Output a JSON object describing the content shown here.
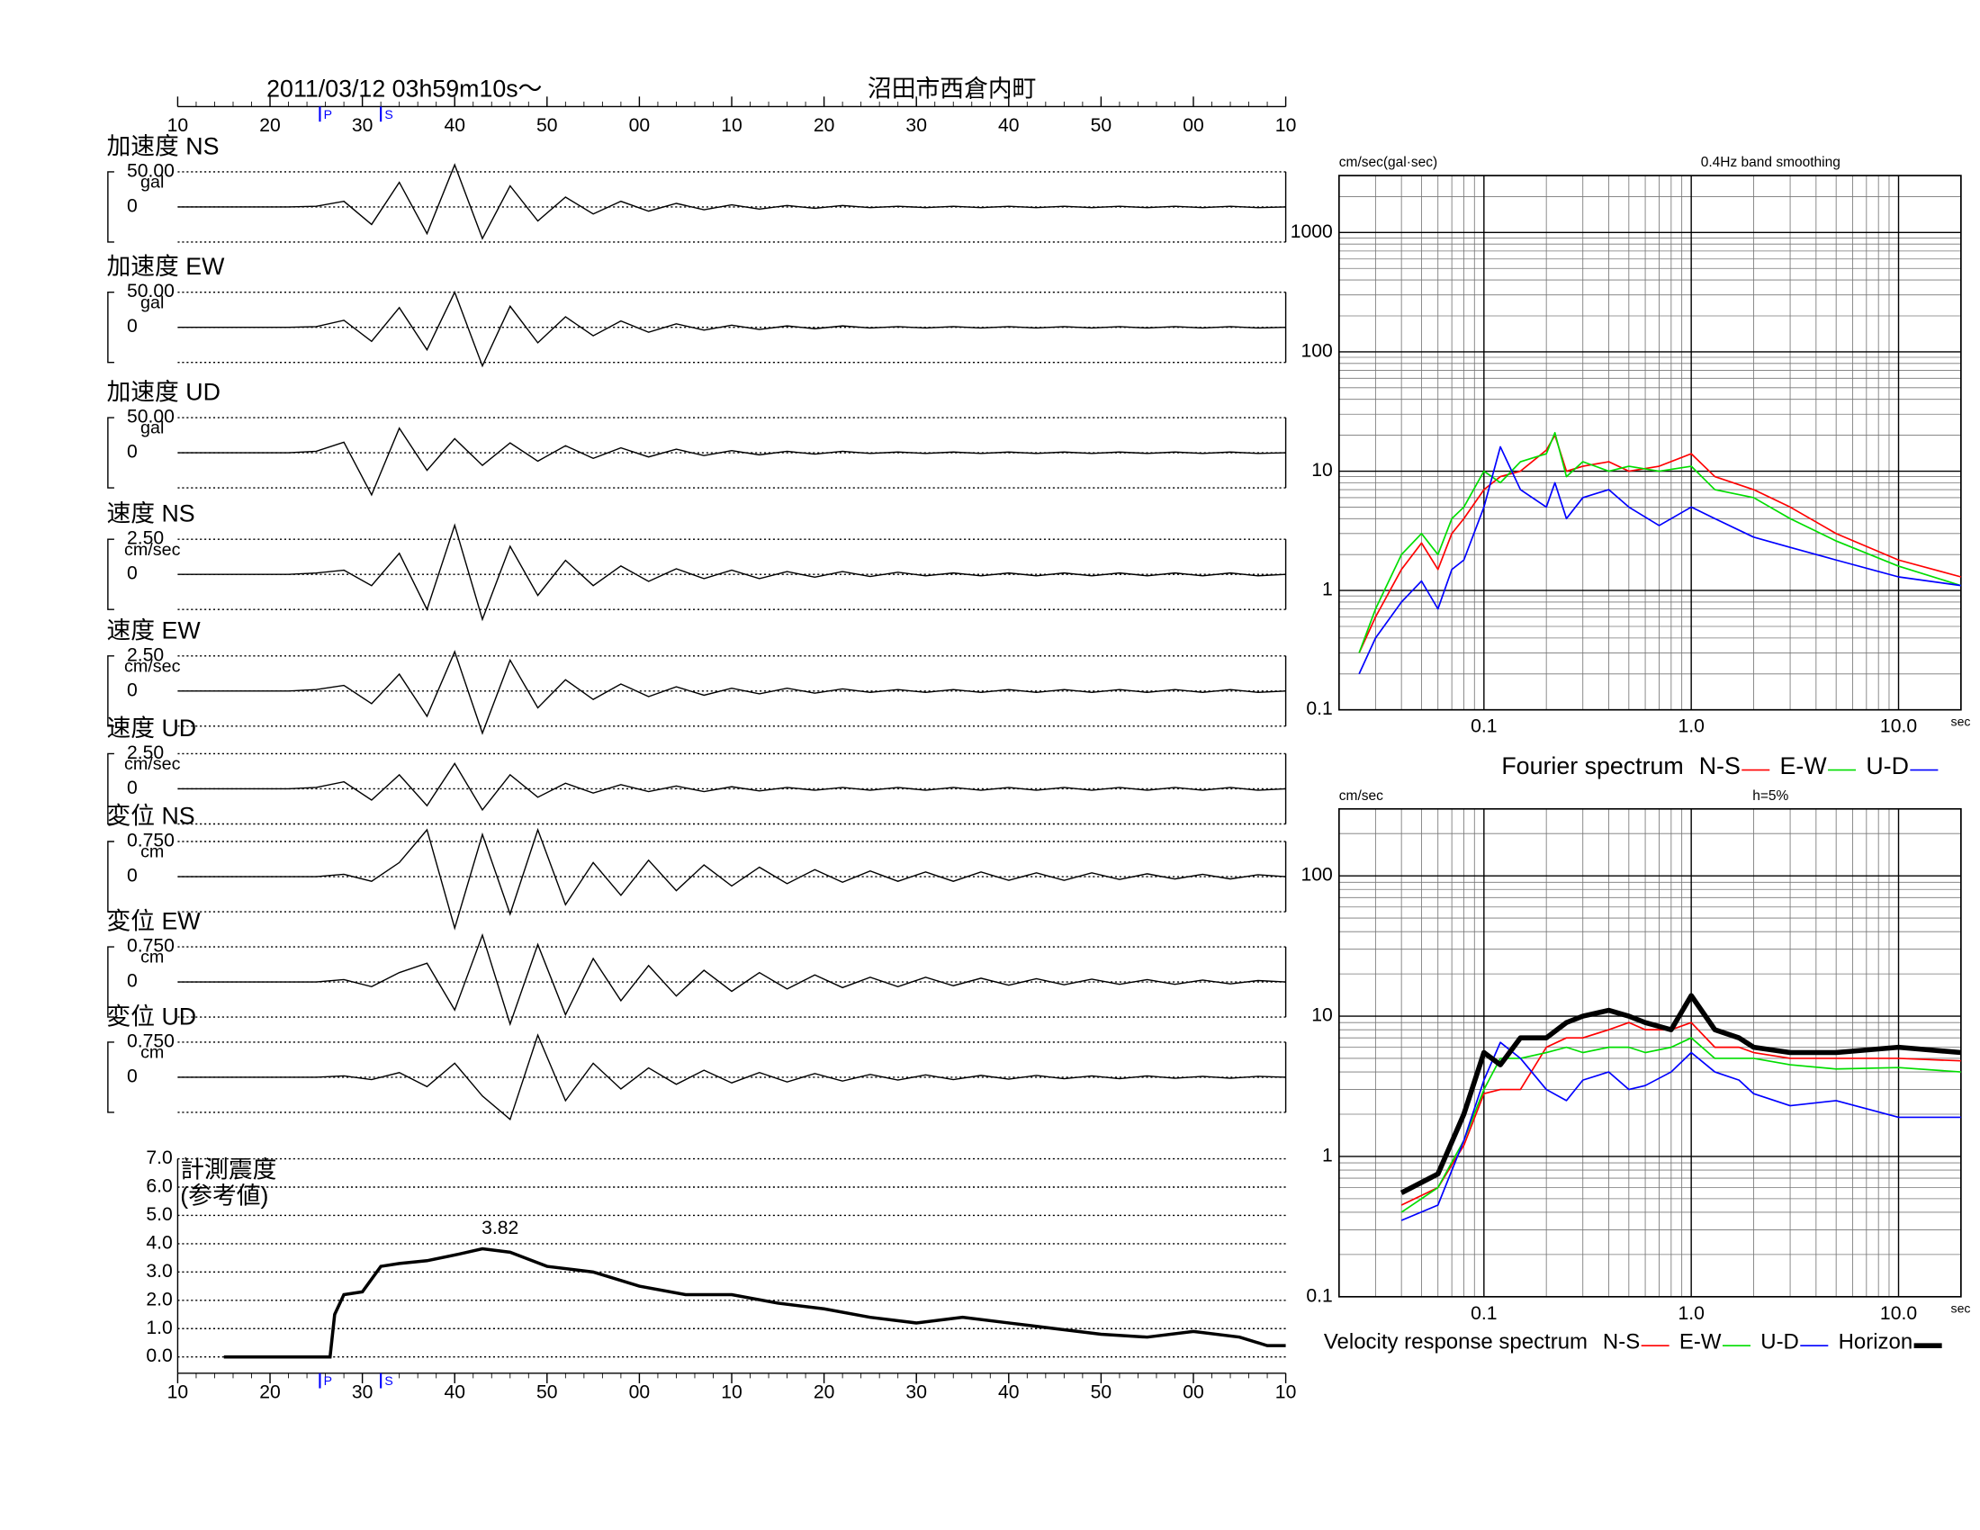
{
  "chart_data": [
    {
      "type": "waveform",
      "title": "2011/03/12  03h59m10s～",
      "subtitle": "沼田市西倉内町",
      "xlim": [
        0,
        120
      ],
      "xticks": [
        {
          "value": 0,
          "label": "10"
        },
        {
          "value": 10,
          "label": "20"
        },
        {
          "value": 20,
          "label": "30"
        },
        {
          "value": 30,
          "label": "40"
        },
        {
          "value": 40,
          "label": "50"
        },
        {
          "value": 50,
          "label": "00"
        },
        {
          "value": 60,
          "label": "10"
        },
        {
          "value": 70,
          "label": "20"
        },
        {
          "value": 80,
          "label": "30"
        },
        {
          "value": 90,
          "label": "40"
        },
        {
          "value": 100,
          "label": "50"
        },
        {
          "value": 110,
          "label": "00"
        },
        {
          "value": 120,
          "label": "10"
        }
      ],
      "phases": [
        {
          "label": "P",
          "x": 15.4,
          "color": "#0000ff"
        },
        {
          "label": "S",
          "x": 22,
          "color": "#0000ff"
        }
      ],
      "x": [
        0,
        3,
        6,
        9,
        12,
        15,
        18,
        21,
        24,
        27,
        30,
        33,
        36,
        39,
        42,
        45,
        48,
        51,
        54,
        57,
        60,
        63,
        66,
        69,
        72,
        75,
        78,
        81,
        84,
        87,
        90,
        93,
        96,
        99,
        102,
        105,
        108,
        111,
        114,
        117,
        120
      ],
      "panels": [
        {
          "name": "加速度 NS",
          "unit": "gal",
          "ylim": [
            -50,
            50
          ],
          "yticks": [
            {
              "value": 50,
              "label": "50.00"
            },
            0
          ],
          "values": [
            0,
            0,
            0,
            0,
            0,
            1,
            8,
            -25,
            35,
            -38,
            60,
            -45,
            30,
            -20,
            14,
            -10,
            8,
            -6,
            5,
            -4,
            3,
            -3,
            2,
            -2,
            2,
            -1,
            1,
            -1,
            1,
            -1,
            1,
            -1,
            1,
            -1,
            1,
            -1,
            1,
            -1,
            1,
            -1,
            0
          ]
        },
        {
          "name": "加速度 EW",
          "unit": "gal",
          "ylim": [
            -50,
            50
          ],
          "yticks": [
            {
              "value": 50,
              "label": "50.00"
            },
            0
          ],
          "values": [
            0,
            0,
            0,
            0,
            0,
            1,
            10,
            -20,
            28,
            -32,
            50,
            -55,
            30,
            -22,
            15,
            -12,
            9,
            -7,
            5,
            -4,
            3,
            -3,
            2,
            -2,
            2,
            -1,
            1,
            -1,
            1,
            -1,
            1,
            -1,
            1,
            -1,
            1,
            -1,
            1,
            -1,
            1,
            -1,
            0
          ]
        },
        {
          "name": "加速度 UD",
          "unit": "gal",
          "ylim": [
            -50,
            50
          ],
          "yticks": [
            {
              "value": 50,
              "label": "50.00"
            },
            0
          ],
          "values": [
            0,
            0,
            0,
            0,
            0,
            2,
            15,
            -60,
            35,
            -25,
            20,
            -18,
            14,
            -12,
            10,
            -8,
            7,
            -6,
            5,
            -4,
            3,
            -3,
            2,
            -2,
            2,
            -1,
            1,
            -1,
            1,
            -1,
            1,
            -1,
            1,
            -1,
            1,
            -1,
            1,
            -1,
            1,
            -1,
            0
          ]
        },
        {
          "name": "速度 NS",
          "unit": "cm/sec",
          "ylim": [
            -2.5,
            2.5
          ],
          "yticks": [
            {
              "value": 2.5,
              "label": "2.50"
            },
            0
          ],
          "values": [
            0,
            0,
            0,
            0,
            0,
            0.1,
            0.3,
            -0.8,
            1.5,
            -2.5,
            3.5,
            -3.2,
            2.0,
            -1.5,
            1.0,
            -0.8,
            0.6,
            -0.5,
            0.4,
            -0.3,
            0.3,
            -0.3,
            0.2,
            -0.2,
            0.2,
            -0.15,
            0.15,
            -0.1,
            0.1,
            -0.1,
            0.1,
            -0.1,
            0.1,
            -0.1,
            0.1,
            -0.1,
            0.1,
            -0.1,
            0.1,
            -0.1,
            0
          ]
        },
        {
          "name": "速度 EW",
          "unit": "cm/sec",
          "ylim": [
            -2.5,
            2.5
          ],
          "yticks": [
            {
              "value": 2.5,
              "label": "2.50"
            },
            0
          ],
          "values": [
            0,
            0,
            0,
            0,
            0,
            0.1,
            0.4,
            -0.9,
            1.2,
            -1.8,
            2.8,
            -3.0,
            2.2,
            -1.2,
            0.8,
            -0.6,
            0.5,
            -0.4,
            0.3,
            -0.3,
            0.2,
            -0.2,
            0.2,
            -0.15,
            0.15,
            -0.1,
            0.1,
            -0.1,
            0.1,
            -0.1,
            0.1,
            -0.1,
            0.1,
            -0.1,
            0.1,
            -0.1,
            0.1,
            -0.1,
            0.1,
            -0.1,
            0
          ]
        },
        {
          "name": "速度 UD",
          "unit": "cm/sec",
          "ylim": [
            -2.5,
            2.5
          ],
          "yticks": [
            {
              "value": 2.5,
              "label": "2.50"
            },
            0
          ],
          "values": [
            0,
            0,
            0,
            0,
            0,
            0.1,
            0.5,
            -0.8,
            1.0,
            -1.2,
            1.8,
            -1.5,
            1.0,
            -0.6,
            0.4,
            -0.3,
            0.3,
            -0.2,
            0.2,
            -0.2,
            0.15,
            -0.15,
            0.1,
            -0.1,
            0.1,
            -0.1,
            0.1,
            -0.1,
            0.1,
            -0.1,
            0.1,
            -0.1,
            0.1,
            -0.1,
            0.1,
            -0.1,
            0.1,
            -0.1,
            0.1,
            -0.1,
            0
          ]
        },
        {
          "name": "変位 NS",
          "unit": "cm",
          "ylim": [
            -0.75,
            0.75
          ],
          "yticks": [
            {
              "value": 0.75,
              "label": "0.750"
            },
            0
          ],
          "values": [
            0,
            0,
            0,
            0,
            0,
            0,
            0.05,
            -0.1,
            0.3,
            1.0,
            -1.1,
            0.9,
            -0.8,
            1.0,
            -0.6,
            0.3,
            -0.4,
            0.35,
            -0.3,
            0.25,
            -0.2,
            0.2,
            -0.15,
            0.15,
            -0.12,
            0.12,
            -0.1,
            0.1,
            -0.1,
            0.1,
            -0.08,
            0.08,
            -0.08,
            0.08,
            -0.06,
            0.06,
            -0.05,
            0.05,
            -0.05,
            0.04,
            0
          ]
        },
        {
          "name": "変位 EW",
          "unit": "cm",
          "ylim": [
            -0.75,
            0.75
          ],
          "yticks": [
            {
              "value": 0.75,
              "label": "0.750"
            },
            0
          ],
          "values": [
            0,
            0,
            0,
            0,
            0,
            0,
            0.05,
            -0.1,
            0.2,
            0.4,
            -0.6,
            1.0,
            -0.9,
            0.8,
            -0.7,
            0.5,
            -0.4,
            0.35,
            -0.3,
            0.25,
            -0.2,
            0.2,
            -0.15,
            0.15,
            -0.12,
            0.1,
            -0.1,
            0.1,
            -0.08,
            0.08,
            -0.07,
            0.07,
            -0.06,
            0.06,
            -0.05,
            0.05,
            -0.05,
            0.04,
            -0.04,
            0.03,
            0
          ]
        },
        {
          "name": "変位 UD",
          "unit": "cm",
          "ylim": [
            -0.75,
            0.75
          ],
          "yticks": [
            {
              "value": 0.75,
              "label": "0.750"
            },
            0
          ],
          "values": [
            0,
            0,
            0,
            0,
            0,
            0,
            0.03,
            -0.05,
            0.1,
            -0.2,
            0.3,
            -0.4,
            -0.9,
            0.9,
            -0.5,
            0.3,
            -0.25,
            0.2,
            -0.15,
            0.15,
            -0.12,
            0.1,
            -0.1,
            0.08,
            -0.08,
            0.06,
            -0.06,
            0.05,
            -0.05,
            0.04,
            -0.04,
            0.04,
            -0.03,
            0.03,
            -0.03,
            0.03,
            -0.02,
            0.02,
            -0.02,
            0.02,
            0
          ]
        }
      ]
    },
    {
      "type": "line",
      "title": "計測震度",
      "subtitle": "(参考値)",
      "xlim": [
        0,
        120
      ],
      "xticks": [
        {
          "value": 0,
          "label": "10"
        },
        {
          "value": 10,
          "label": "20"
        },
        {
          "value": 20,
          "label": "30"
        },
        {
          "value": 30,
          "label": "40"
        },
        {
          "value": 40,
          "label": "50"
        },
        {
          "value": 50,
          "label": "00"
        },
        {
          "value": 60,
          "label": "10"
        },
        {
          "value": 70,
          "label": "20"
        },
        {
          "value": 80,
          "label": "30"
        },
        {
          "value": 90,
          "label": "40"
        },
        {
          "value": 100,
          "label": "50"
        },
        {
          "value": 110,
          "label": "00"
        },
        {
          "value": 120,
          "label": "10"
        }
      ],
      "phases": [
        {
          "label": "P",
          "x": 15.4,
          "color": "#0000ff"
        },
        {
          "label": "S",
          "x": 22,
          "color": "#0000ff"
        }
      ],
      "ylim": [
        0,
        7
      ],
      "yticks": [
        {
          "value": 0,
          "label": "0.0"
        },
        {
          "value": 1,
          "label": "1.0"
        },
        {
          "value": 2,
          "label": "2.0"
        },
        {
          "value": 3,
          "label": "3.0"
        },
        {
          "value": 4,
          "label": "4.0"
        },
        {
          "value": 5,
          "label": "5.0"
        },
        {
          "value": 6,
          "label": "6.0"
        },
        {
          "value": 7,
          "label": "7.0"
        }
      ],
      "x": [
        5,
        16.5,
        17,
        18,
        20,
        22,
        24,
        27,
        30,
        33,
        36,
        40,
        45,
        50,
        55,
        60,
        65,
        70,
        75,
        80,
        85,
        90,
        95,
        100,
        105,
        110,
        115,
        118,
        120
      ],
      "values": [
        0,
        0,
        1.5,
        2.2,
        2.3,
        3.2,
        3.3,
        3.4,
        3.6,
        3.82,
        3.7,
        3.2,
        3.0,
        2.5,
        2.2,
        2.2,
        1.9,
        1.7,
        1.4,
        1.2,
        1.4,
        1.2,
        1.0,
        0.8,
        0.7,
        0.9,
        0.7,
        0.4,
        0.4
      ],
      "color": "#000000",
      "peak": {
        "x": 33,
        "value": 3.82
      }
    },
    {
      "type": "loglog",
      "ylabel": "cm/sec(gal·sec)",
      "note": "0.4Hz band smoothing",
      "xlabel": "sec",
      "legend_title": "Fourier spectrum",
      "xlim": [
        0.02,
        20
      ],
      "ylim": [
        0.1,
        3000
      ],
      "xticks": [
        0.1,
        {
          "value": 1,
          "label": "1.0"
        },
        {
          "value": 10,
          "label": "10.0"
        }
      ],
      "yticks": [
        0.1,
        1,
        10,
        100,
        1000
      ],
      "grid": true,
      "x": [
        0.025,
        0.03,
        0.04,
        0.05,
        0.06,
        0.07,
        0.08,
        0.1,
        0.12,
        0.15,
        0.2,
        0.22,
        0.25,
        0.3,
        0.4,
        0.5,
        0.7,
        1.0,
        1.3,
        2,
        3,
        5,
        10,
        20
      ],
      "series": [
        {
          "name": "N-S",
          "color": "#ff0000",
          "line_width": 1.2,
          "values": [
            0.3,
            0.6,
            1.5,
            2.5,
            1.5,
            3,
            4,
            7,
            9,
            10,
            15,
            20,
            10,
            11,
            12,
            10,
            11,
            14,
            9,
            7,
            5,
            3,
            1.8,
            1.3
          ]
        },
        {
          "name": "E-W",
          "color": "#00dd00",
          "line_width": 1.2,
          "values": [
            0.3,
            0.7,
            2,
            3,
            2,
            4,
            5,
            10,
            8,
            12,
            14,
            21,
            9,
            12,
            10,
            11,
            10,
            11,
            7,
            6,
            4,
            2.6,
            1.6,
            1.1
          ]
        },
        {
          "name": "U-D",
          "color": "#0000ff",
          "line_width": 1.2,
          "values": [
            0.2,
            0.4,
            0.8,
            1.2,
            0.7,
            1.5,
            1.8,
            5,
            16,
            7,
            5,
            8,
            4,
            6,
            7,
            5,
            3.5,
            5,
            4,
            2.8,
            2.3,
            1.8,
            1.3,
            1.1
          ]
        }
      ]
    },
    {
      "type": "loglog",
      "ylabel": "cm/sec",
      "note": "h=5%",
      "xlabel": "sec",
      "legend_title": "Velocity response spectrum",
      "xlim": [
        0.02,
        20
      ],
      "ylim": [
        0.1,
        300
      ],
      "xticks": [
        0.1,
        {
          "value": 1,
          "label": "1.0"
        },
        {
          "value": 10,
          "label": "10.0"
        }
      ],
      "yticks": [
        0.1,
        1,
        10,
        100
      ],
      "grid": true,
      "x": [
        0.04,
        0.06,
        0.08,
        0.1,
        0.12,
        0.15,
        0.2,
        0.25,
        0.3,
        0.4,
        0.5,
        0.6,
        0.8,
        1.0,
        1.3,
        1.7,
        2,
        3,
        5,
        10,
        20
      ],
      "series": [
        {
          "name": "N-S",
          "color": "#ff0000",
          "line_width": 1.2,
          "values": [
            0.45,
            0.6,
            1.2,
            2.8,
            3,
            3,
            6,
            7,
            7,
            8,
            9,
            8,
            8,
            9,
            6,
            6,
            5.5,
            5,
            5,
            5,
            4.8
          ]
        },
        {
          "name": "E-W",
          "color": "#00dd00",
          "line_width": 1.2,
          "values": [
            0.4,
            0.6,
            1.3,
            3,
            5,
            5,
            5.5,
            6,
            5.5,
            6,
            6,
            5.5,
            6,
            7,
            5,
            5,
            5,
            4.5,
            4.2,
            4.3,
            4
          ]
        },
        {
          "name": "U-D",
          "color": "#0000ff",
          "line_width": 1.2,
          "values": [
            0.35,
            0.45,
            1.3,
            3.5,
            6.5,
            5,
            3,
            2.5,
            3.5,
            4,
            3,
            3.2,
            4,
            5.5,
            4,
            3.5,
            2.8,
            2.3,
            2.5,
            1.9,
            1.9
          ]
        },
        {
          "name": "Horizon",
          "color": "#000000",
          "line_width": 4,
          "values": [
            0.55,
            0.75,
            2,
            5.5,
            4.5,
            7,
            7,
            9,
            10,
            11,
            10,
            9,
            8,
            14,
            8,
            7,
            6,
            5.5,
            5.5,
            6,
            5.5
          ]
        }
      ]
    }
  ]
}
